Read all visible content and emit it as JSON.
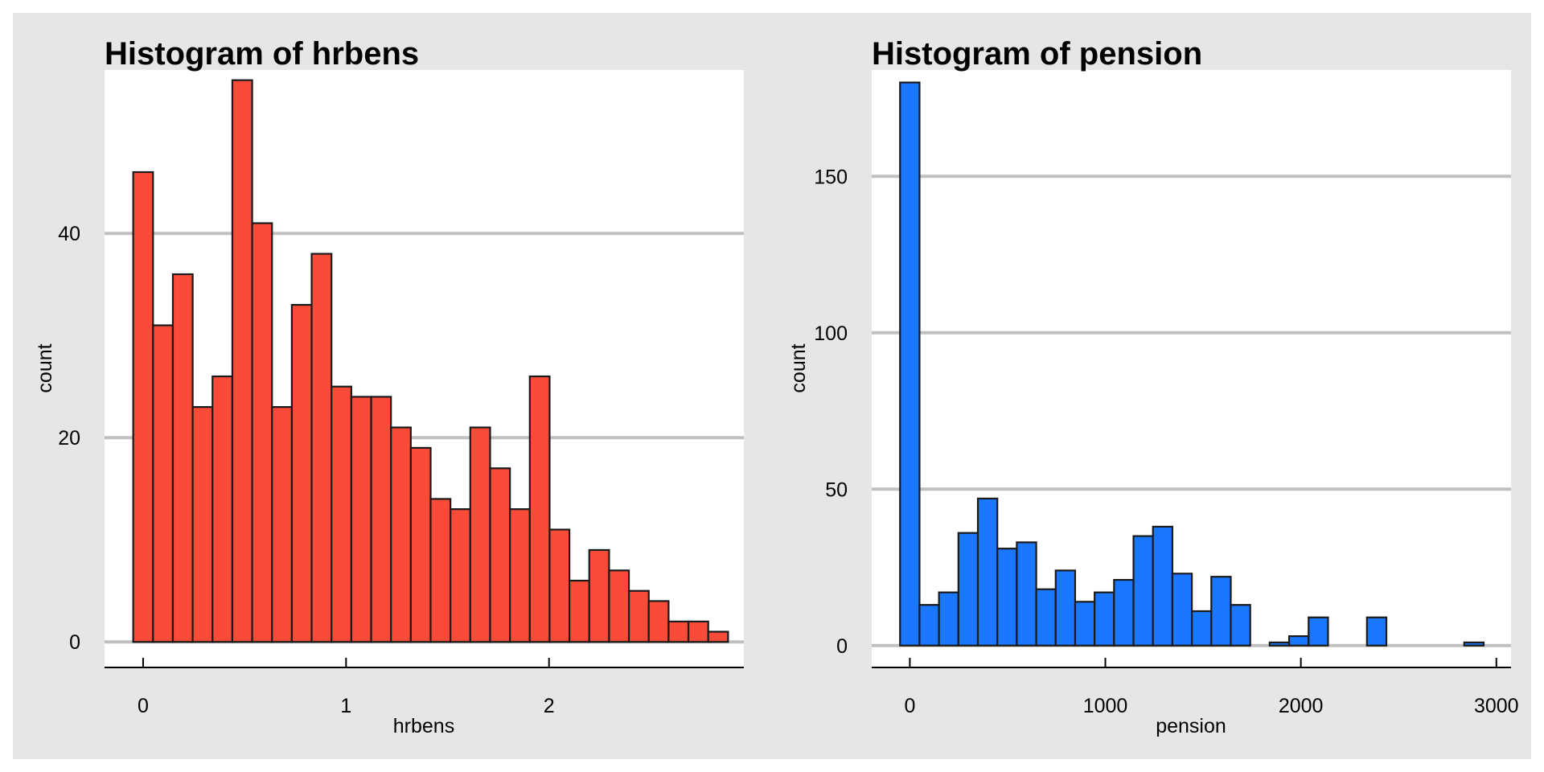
{
  "colors": {
    "panel_background": "#e6e6e6",
    "plot_background": "#ffffff",
    "gridline": "#c0c0c0",
    "bar_outline": "#1a1a1a",
    "axis": "#000000",
    "text": "#000000"
  },
  "chart_data": [
    {
      "type": "bar",
      "title": "Histogram of hrbens",
      "xlabel": "hrbens",
      "ylabel": "count",
      "color": "#f94b38",
      "grid": "horizontal",
      "xlim": [
        -0.19,
        2.96
      ],
      "ylim": [
        -2.5,
        56
      ],
      "xticks": [
        0,
        1,
        2
      ],
      "yticks": [
        0,
        20,
        40
      ],
      "bin_width": 0.0977,
      "bin_start": -0.0488,
      "values": [
        46,
        31,
        36,
        23,
        26,
        55,
        41,
        23,
        33,
        38,
        25,
        24,
        24,
        21,
        19,
        14,
        13,
        21,
        17,
        13,
        26,
        11,
        6,
        9,
        7,
        5,
        4,
        2,
        2,
        1
      ]
    },
    {
      "type": "bar",
      "title": "Histogram of pension",
      "xlabel": "pension",
      "ylabel": "count",
      "color": "#1a77ff",
      "grid": "horizontal",
      "xlim": [
        -195,
        3075
      ],
      "ylim": [
        -7,
        184
      ],
      "xticks": [
        0,
        1000,
        2000,
        3000
      ],
      "yticks": [
        0,
        50,
        100,
        150
      ],
      "bin_width": 99.5,
      "bin_start": -50,
      "values": [
        180,
        13,
        17,
        36,
        47,
        31,
        33,
        18,
        24,
        14,
        17,
        21,
        35,
        38,
        23,
        11,
        22,
        13,
        0,
        1,
        3,
        9,
        0,
        0,
        9,
        0,
        0,
        0,
        0,
        1
      ]
    }
  ]
}
